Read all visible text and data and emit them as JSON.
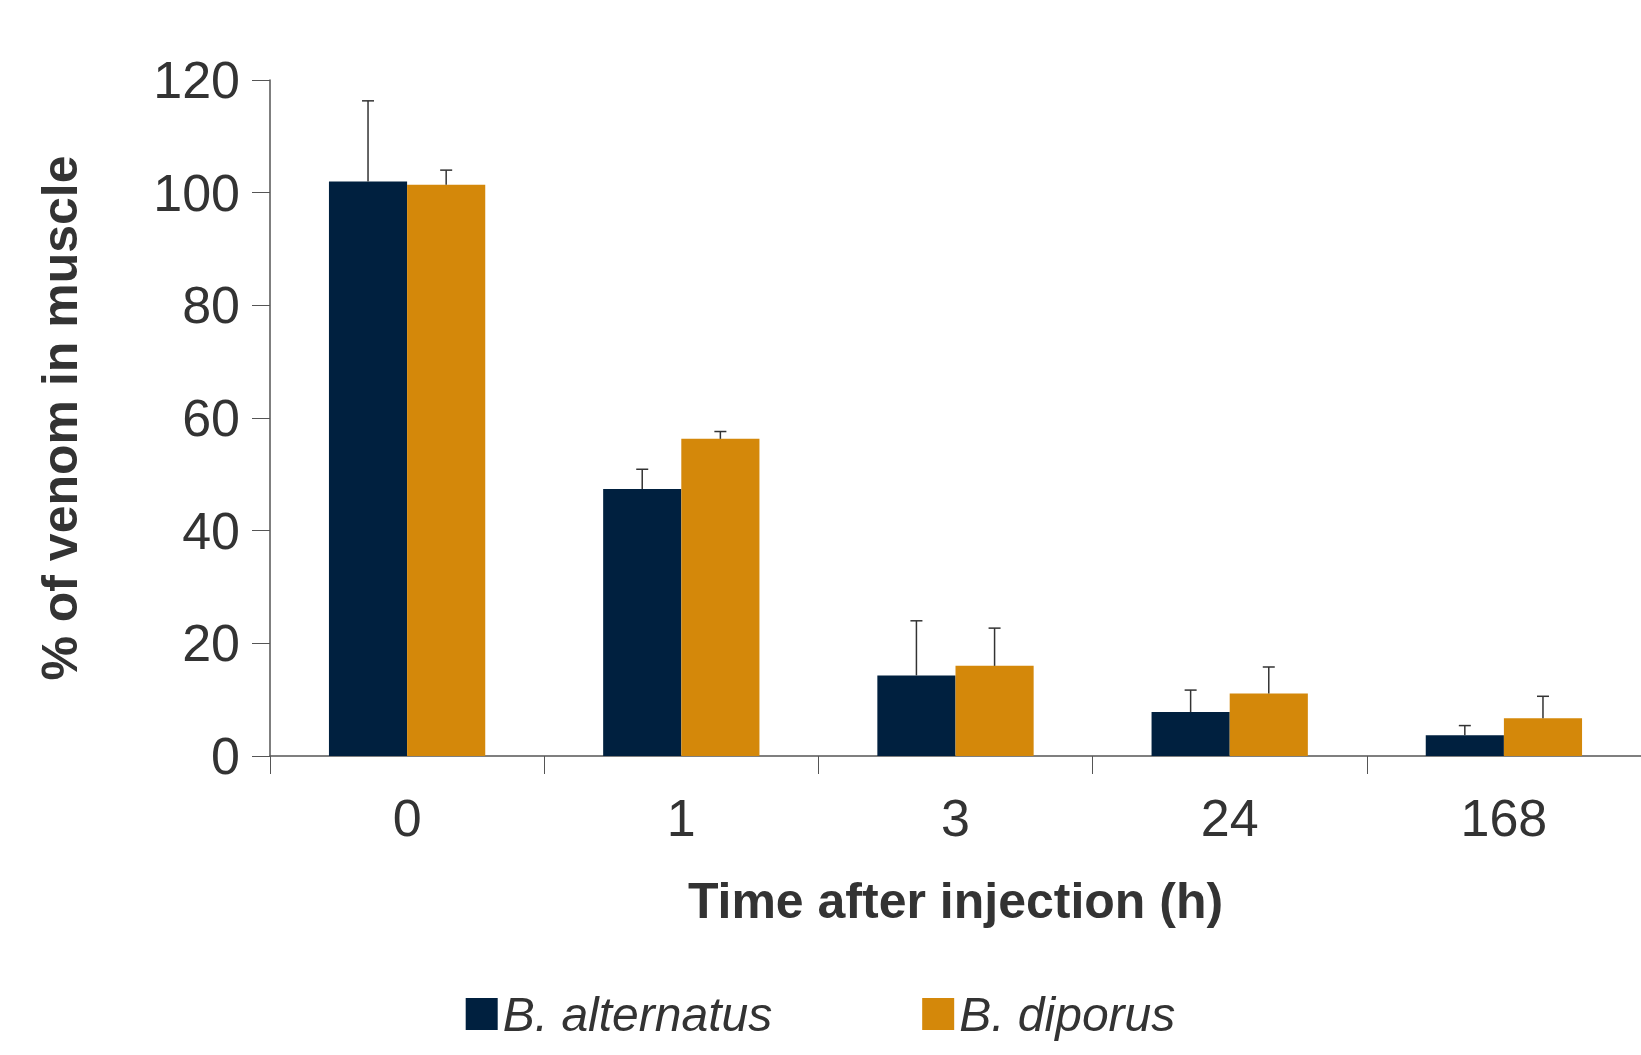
{
  "chart_data": {
    "type": "bar",
    "xlabel": "Time after injection (h)",
    "ylabel": "% of venom in muscle",
    "categories": [
      "0",
      "1",
      "3",
      "24",
      "168"
    ],
    "series": [
      {
        "name": "B. alternatus",
        "color": "#00203f",
        "values": [
          102,
          47.4,
          14.3,
          7.8,
          3.7
        ],
        "errors": [
          [
            102,
            116.3
          ],
          [
            47.4,
            50.9
          ],
          [
            14.3,
            24
          ],
          [
            7.8,
            11.7
          ],
          [
            3.7,
            5.4
          ]
        ]
      },
      {
        "name": "B. diporus",
        "color": "#d4880a",
        "values": [
          101.4,
          56.3,
          16,
          11.1,
          6.7
        ],
        "errors": [
          [
            101.4,
            104
          ],
          [
            56.3,
            57.6
          ],
          [
            16,
            22.7
          ],
          [
            11.1,
            15.8
          ],
          [
            6.7,
            10.6
          ]
        ]
      }
    ],
    "ylim": [
      0,
      120
    ],
    "yticks": [
      0,
      20,
      40,
      60,
      80,
      100,
      120
    ],
    "grid": false,
    "legend": "bottom"
  }
}
